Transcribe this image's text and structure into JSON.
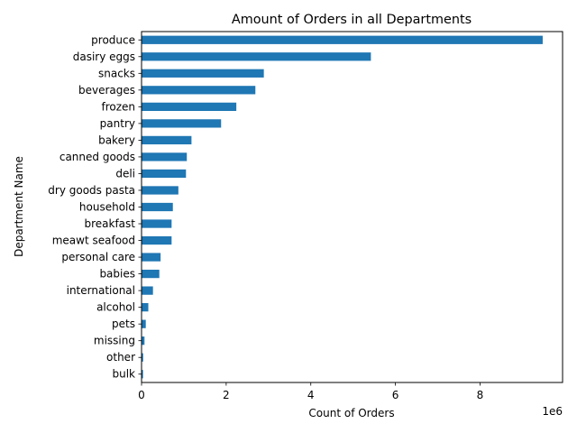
{
  "chart_data": {
    "type": "bar",
    "orientation": "horizontal",
    "title": "Amount of Orders in all Departments",
    "xlabel": "Count of Orders",
    "ylabel": "Department Name",
    "x_offset_label": "1e6",
    "x_scale": 1000000,
    "xlim": [
      0,
      9950000
    ],
    "x_ticks": [
      0,
      2000000,
      4000000,
      6000000,
      8000000
    ],
    "x_tick_labels": [
      "0",
      "2",
      "4",
      "6",
      "8"
    ],
    "grid": false,
    "bar_color": "#1f77b4",
    "categories": [
      "produce",
      "dasiry eggs",
      "snacks",
      "beverages",
      "frozen",
      "pantry",
      "bakery",
      "canned goods",
      "deli",
      "dry goods pasta",
      "household",
      "breakfast",
      "meawt seafood",
      "personal care",
      "babies",
      "international",
      "alcohol",
      "pets",
      "missing",
      "other",
      "bulk"
    ],
    "values": [
      9480000,
      5420000,
      2890000,
      2690000,
      2240000,
      1880000,
      1180000,
      1070000,
      1050000,
      870000,
      740000,
      710000,
      710000,
      450000,
      420000,
      270000,
      160000,
      100000,
      70000,
      38000,
      35000
    ]
  }
}
